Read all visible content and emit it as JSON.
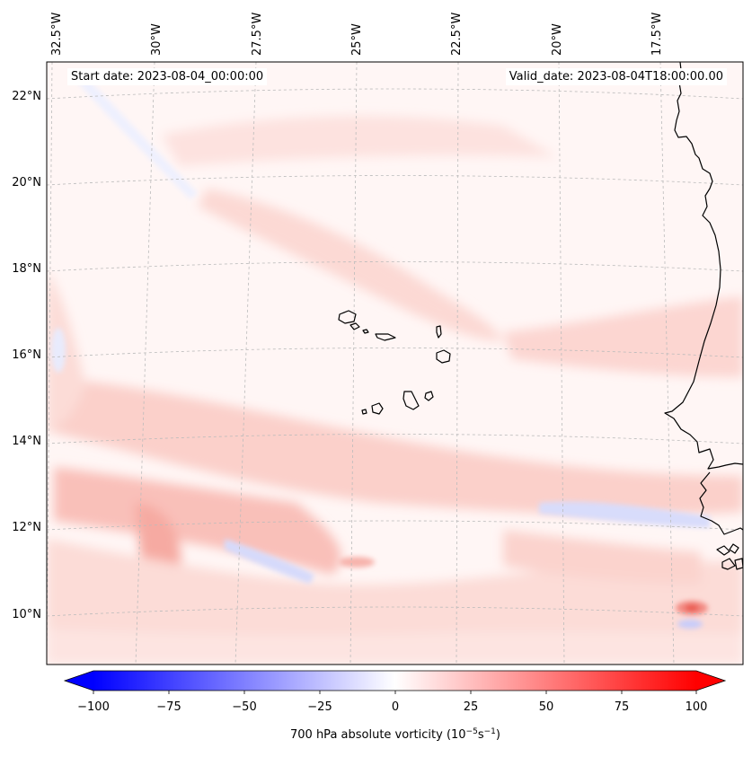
{
  "map": {
    "start_date_text": "Start date: 2023-08-04_00:00:00",
    "valid_date_text": "Valid_date: 2023-08-04T18:00:00.00",
    "longitude_labels": [
      "32.5°W",
      "30°W",
      "27.5°W",
      "25°W",
      "22.5°W",
      "20°W",
      "17.5°W"
    ],
    "latitude_labels": [
      "22°N",
      "20°N",
      "18°N",
      "16°N",
      "14°N",
      "12°N",
      "10°N"
    ],
    "field": "700 hPa absolute vorticity",
    "units": "10^-5 s^-1",
    "region_features": [
      "Cape Verde islands",
      "West African coastline"
    ]
  },
  "colorbar": {
    "label_prefix": "700 hPa absolute vorticity (10",
    "exp1": "−5",
    "label_mid": "s",
    "exp2": "−1",
    "label_suffix": ")",
    "tick_labels": [
      "−100",
      "−75",
      "−50",
      "−25",
      "0",
      "25",
      "50",
      "75",
      "100"
    ],
    "min": -100,
    "max": 100,
    "low_color": "#0000ff",
    "mid_color": "#ffffff",
    "high_color": "#ff0000"
  },
  "colors": {
    "gridline": "#bbbbbb",
    "coastline": "#000000",
    "frame": "#000000"
  }
}
